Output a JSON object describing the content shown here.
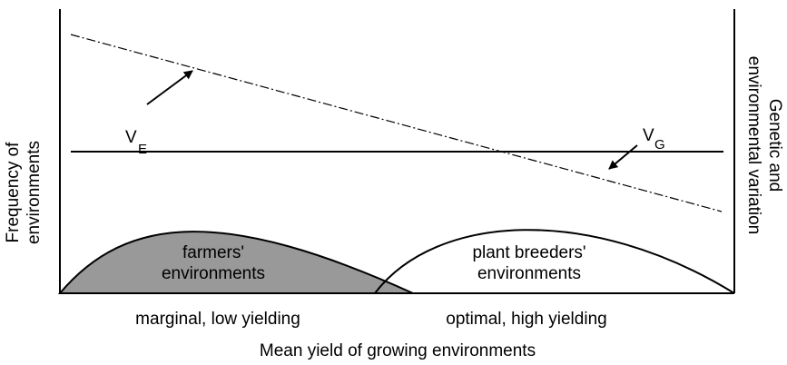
{
  "y_axis_label": [
    "Frequency of",
    "environments"
  ],
  "y2_axis_label": [
    "Genetic and",
    "environmental variation"
  ],
  "x_axis_label": "Mean yield of growing environments",
  "x_regions": [
    "marginal, low yielding",
    "optimal, high yielding"
  ],
  "farmers_label": [
    "farmers'",
    "environments"
  ],
  "breeders_label": [
    "plant breeders'",
    "environments"
  ],
  "v_e": {
    "symbol": "V",
    "subscript": "E"
  },
  "v_g": {
    "symbol": "V",
    "subscript": "G"
  }
}
